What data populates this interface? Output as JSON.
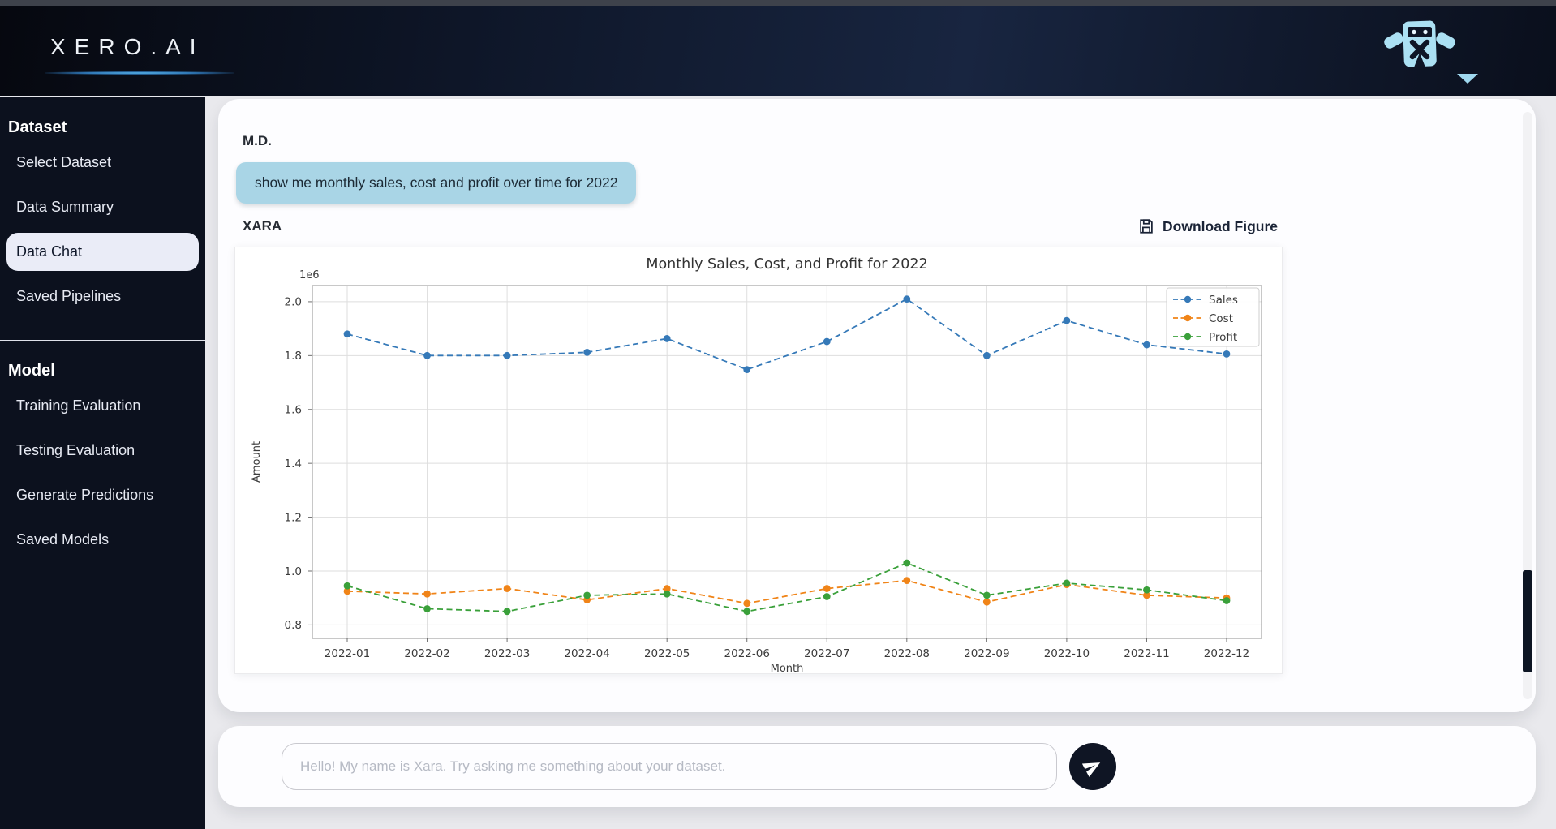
{
  "brand": {
    "logo_text": "XERO.AI"
  },
  "sidebar": {
    "sections": [
      {
        "title": "Dataset",
        "items": [
          {
            "label": "Select Dataset"
          },
          {
            "label": "Data Summary"
          },
          {
            "label": "Data Chat"
          },
          {
            "label": "Saved Pipelines"
          }
        ]
      },
      {
        "title": "Model",
        "items": [
          {
            "label": "Training Evaluation"
          },
          {
            "label": "Testing Evaluation"
          },
          {
            "label": "Generate Predictions"
          },
          {
            "label": "Saved Models"
          }
        ]
      }
    ]
  },
  "chat": {
    "user_label": "M.D.",
    "user_message": "show me monthly sales, cost and profit over time for 2022",
    "assistant_label": "XARA",
    "download_button": "Download Figure"
  },
  "composer": {
    "placeholder": "Hello! My name is Xara. Try asking me something about your dataset."
  },
  "chart_data": {
    "type": "line",
    "title": "Monthly Sales, Cost, and Profit for 2022",
    "xlabel": "Month",
    "ylabel": "Amount",
    "y_offset_label": "1e6",
    "categories": [
      "2022-01",
      "2022-02",
      "2022-03",
      "2022-04",
      "2022-05",
      "2022-06",
      "2022-07",
      "2022-08",
      "2022-09",
      "2022-10",
      "2022-11",
      "2022-12"
    ],
    "series": [
      {
        "name": "Sales",
        "color": "#3579b8",
        "values": [
          1880000,
          1800000,
          1800000,
          1812000,
          1863000,
          1748000,
          1852000,
          2010000,
          1800000,
          1930000,
          1840000,
          1806000
        ]
      },
      {
        "name": "Cost",
        "color": "#f08418",
        "values": [
          925000,
          915000,
          935000,
          893000,
          935000,
          880000,
          935000,
          965000,
          885000,
          950000,
          910000,
          900000
        ]
      },
      {
        "name": "Profit",
        "color": "#3aa03a",
        "values": [
          945000,
          860000,
          850000,
          910000,
          915000,
          850000,
          905000,
          1030000,
          910000,
          955000,
          930000,
          890000
        ]
      }
    ],
    "ylim": [
      750000,
      2060000
    ],
    "y_ticks": [
      800000,
      1000000,
      1200000,
      1400000,
      1600000,
      1800000,
      2000000
    ],
    "grid": true,
    "legend_position": "upper right",
    "line_style": "dashed-with-circle-markers"
  }
}
